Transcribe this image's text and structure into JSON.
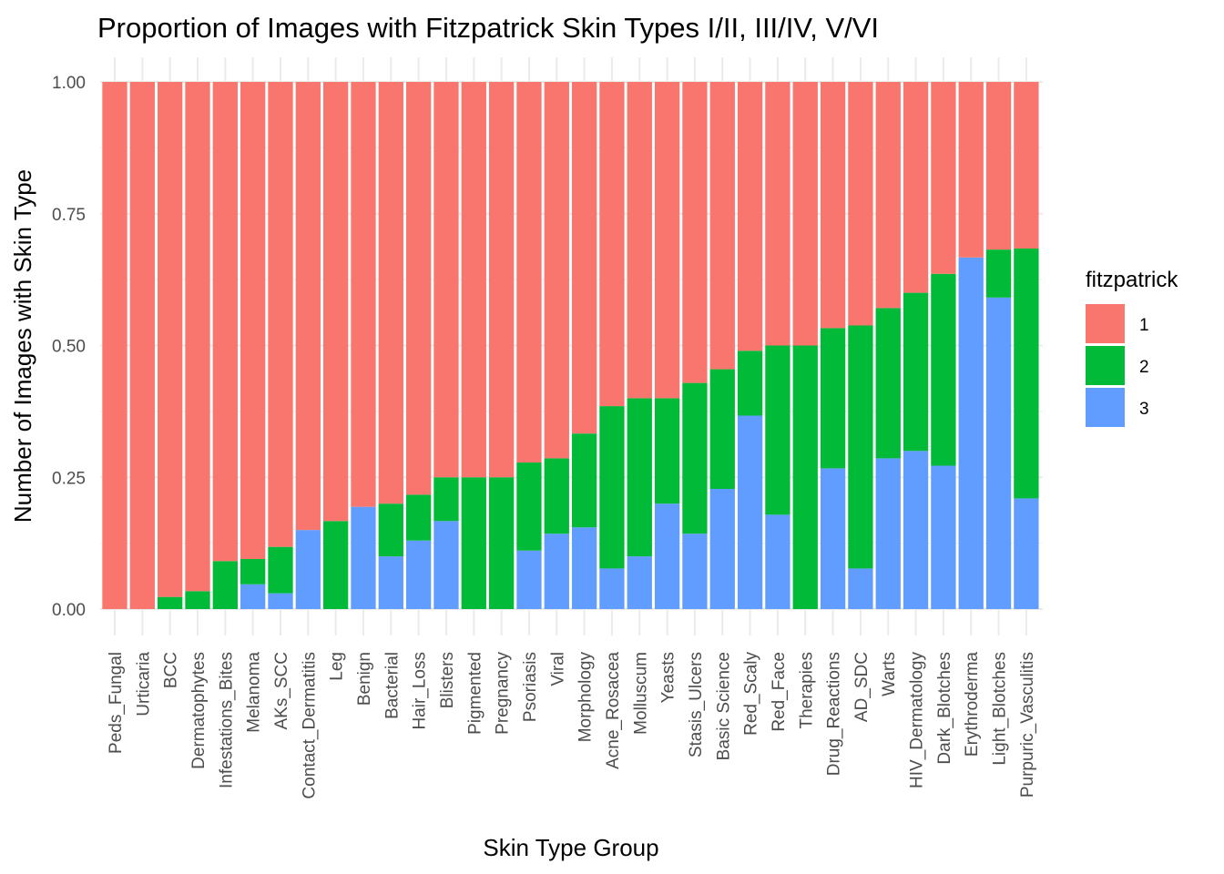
{
  "chart_data": {
    "type": "bar",
    "stacked": true,
    "title": "Proportion of Images with Fitzpatrick Skin Types I/II, III/IV, V/VI",
    "xlabel": "Skin Type Group",
    "ylabel": "Number of Images with Skin Type",
    "ylim": [
      0,
      1
    ],
    "yticks": [
      0,
      0.25,
      0.5,
      0.75,
      1
    ],
    "ytick_labels": [
      "0.00",
      "0.25",
      "0.50",
      "0.75",
      "1.00"
    ],
    "grid": true,
    "legend": {
      "title": "fitzpatrick",
      "position": "right"
    },
    "categories": [
      "Peds_Fungal",
      "Urticaria",
      "BCC",
      "Dermatophytes",
      "Infestations_Bites",
      "Melanoma",
      "AKs_SCC",
      "Contact_Dermatitis",
      "Leg",
      "Benign",
      "Bacterial",
      "Hair_Loss",
      "Blisters",
      "Pigmented",
      "Pregnancy",
      "Psoriasis",
      "Viral",
      "Morphology",
      "Acne_Rosacea",
      "Molluscum",
      "Yeasts",
      "Stasis_Ulcers",
      "Basic Science",
      "Red_Scaly",
      "Red_Face",
      "Therapies",
      "Drug_Reactions",
      "AD_SDC",
      "Warts",
      "HIV_Dermatology",
      "Dark_Blotches",
      "Erythroderma",
      "Light_Blotches",
      "Purpuric_Vasculitis"
    ],
    "series": [
      {
        "name": "1",
        "color": "#F8766D",
        "values": [
          1.0,
          1.0,
          0.977,
          0.966,
          0.909,
          0.905,
          0.882,
          0.85,
          0.833,
          0.806,
          0.8,
          0.783,
          0.75,
          0.75,
          0.75,
          0.722,
          0.714,
          0.667,
          0.615,
          0.6,
          0.6,
          0.571,
          0.545,
          0.51,
          0.5,
          0.5,
          0.467,
          0.462,
          0.429,
          0.4,
          0.364,
          0.333,
          0.318,
          0.316
        ]
      },
      {
        "name": "2",
        "color": "#00BA38",
        "values": [
          0.0,
          0.0,
          0.023,
          0.034,
          0.091,
          0.048,
          0.088,
          0.0,
          0.167,
          0.0,
          0.1,
          0.087,
          0.083,
          0.25,
          0.25,
          0.167,
          0.143,
          0.178,
          0.308,
          0.3,
          0.2,
          0.286,
          0.227,
          0.123,
          0.321,
          0.5,
          0.266,
          0.461,
          0.285,
          0.3,
          0.364,
          0.0,
          0.091,
          0.474
        ]
      },
      {
        "name": "3",
        "color": "#619CFF",
        "values": [
          0.0,
          0.0,
          0.0,
          0.0,
          0.0,
          0.047,
          0.03,
          0.15,
          0.0,
          0.194,
          0.1,
          0.13,
          0.167,
          0.0,
          0.0,
          0.111,
          0.143,
          0.155,
          0.077,
          0.1,
          0.2,
          0.143,
          0.228,
          0.367,
          0.179,
          0.0,
          0.267,
          0.077,
          0.286,
          0.3,
          0.272,
          0.667,
          0.591,
          0.21
        ]
      }
    ]
  }
}
